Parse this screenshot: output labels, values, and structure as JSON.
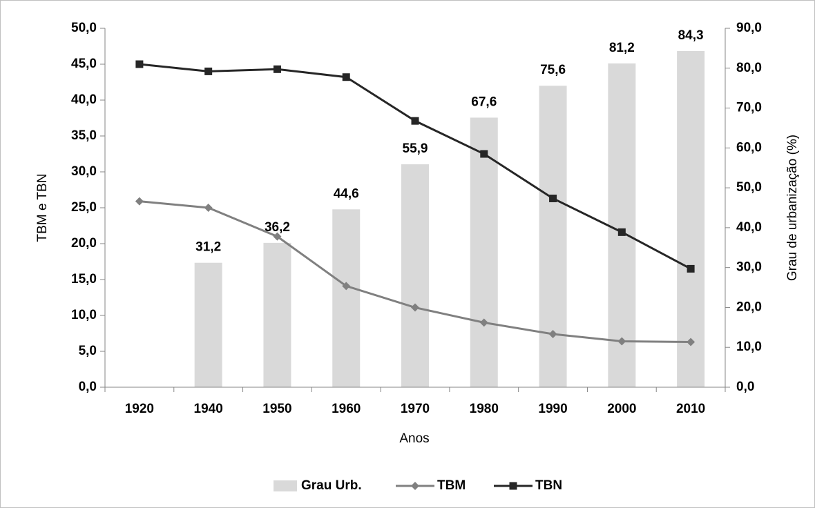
{
  "chart_data": {
    "type": "combo",
    "categories": [
      "1920",
      "1940",
      "1950",
      "1960",
      "1970",
      "1980",
      "1990",
      "2000",
      "2010"
    ],
    "series": [
      {
        "name": "Grau Urb.",
        "type": "bar",
        "axis": "y2",
        "color": "#d9d9d9",
        "values": [
          null,
          31.2,
          36.2,
          44.6,
          55.9,
          67.6,
          75.6,
          81.2,
          84.3
        ],
        "value_labels": [
          null,
          "31,2",
          "36,2",
          "44,6",
          "55,9",
          "67,6",
          "75,6",
          "81,2",
          "84,3"
        ]
      },
      {
        "name": "TBM",
        "type": "line",
        "marker": "diamond",
        "color": "#808080",
        "values": [
          25.9,
          25.0,
          21.0,
          14.1,
          11.1,
          9.0,
          7.4,
          6.4,
          6.3
        ]
      },
      {
        "name": "TBN",
        "type": "line",
        "marker": "square",
        "color": "#262626",
        "values": [
          45.0,
          44.0,
          44.3,
          43.2,
          37.1,
          32.5,
          26.3,
          21.6,
          16.5
        ]
      }
    ],
    "xlabel": "Anos",
    "ylabel": "TBM e TBN",
    "y2label": "Grau de urbanização (%)",
    "ylim": [
      0,
      50
    ],
    "yticks": [
      {
        "value": 0,
        "label": "0,0"
      },
      {
        "value": 5,
        "label": "5,0"
      },
      {
        "value": 10,
        "label": "10,0"
      },
      {
        "value": 15,
        "label": "15,0"
      },
      {
        "value": 20,
        "label": "20,0"
      },
      {
        "value": 25,
        "label": "25,0"
      },
      {
        "value": 30,
        "label": "30,0"
      },
      {
        "value": 35,
        "label": "35,0"
      },
      {
        "value": 40,
        "label": "40,0"
      },
      {
        "value": 45,
        "label": "45,0"
      },
      {
        "value": 50,
        "label": "50,0"
      }
    ],
    "y2lim": [
      0,
      90
    ],
    "y2ticks": [
      {
        "value": 0,
        "label": "0,0"
      },
      {
        "value": 10,
        "label": "10,0"
      },
      {
        "value": 20,
        "label": "20,0"
      },
      {
        "value": 30,
        "label": "30,0"
      },
      {
        "value": 40,
        "label": "40,0"
      },
      {
        "value": 50,
        "label": "50,0"
      },
      {
        "value": 60,
        "label": "60,0"
      },
      {
        "value": 70,
        "label": "70,0"
      },
      {
        "value": 80,
        "label": "80,0"
      },
      {
        "value": 90,
        "label": "90,0"
      }
    ],
    "legend": "bottom",
    "grid": false
  }
}
